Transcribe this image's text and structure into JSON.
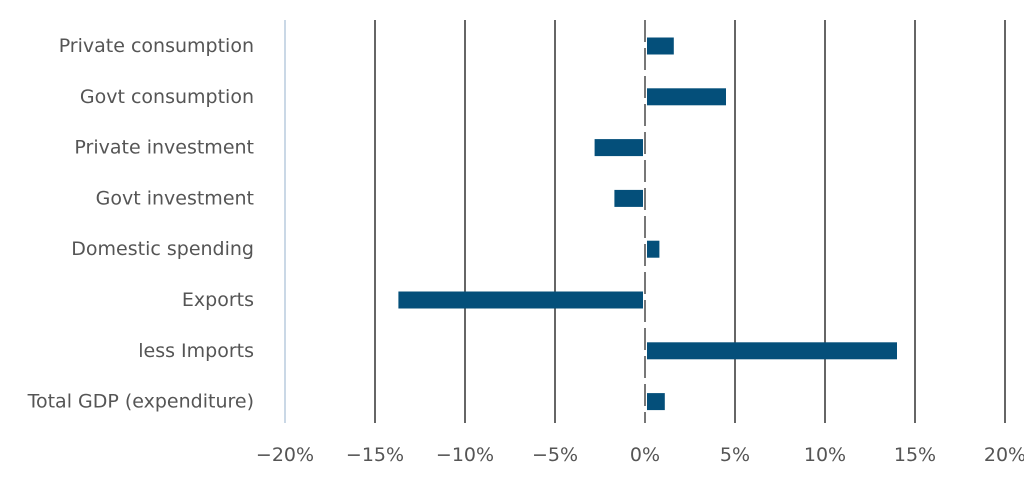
{
  "colors": {
    "bar": "#044F7A",
    "grid": "#666666",
    "zero_line": "#777777",
    "left_axis": "#B8CCDD",
    "text": "#555555"
  },
  "chart_data": {
    "type": "bar",
    "orientation": "horizontal",
    "categories": [
      "Private consumption",
      "Govt consumption",
      "Private investment",
      "Govt investment",
      "Domestic spending",
      "Exports",
      "less Imports",
      "Total GDP (expenditure)"
    ],
    "values": [
      1.6,
      4.5,
      -2.8,
      -1.7,
      0.8,
      -13.7,
      14.0,
      1.1
    ],
    "xlim": [
      -20,
      20
    ],
    "x_ticks": [
      -20,
      -15,
      -10,
      -5,
      0,
      5,
      10,
      15,
      20
    ],
    "x_tick_labels": [
      "−20%",
      "−15%",
      "−10%",
      "−5%",
      "0%",
      "5%",
      "10%",
      "15%",
      "20%"
    ],
    "grid": true,
    "legend": "none"
  }
}
